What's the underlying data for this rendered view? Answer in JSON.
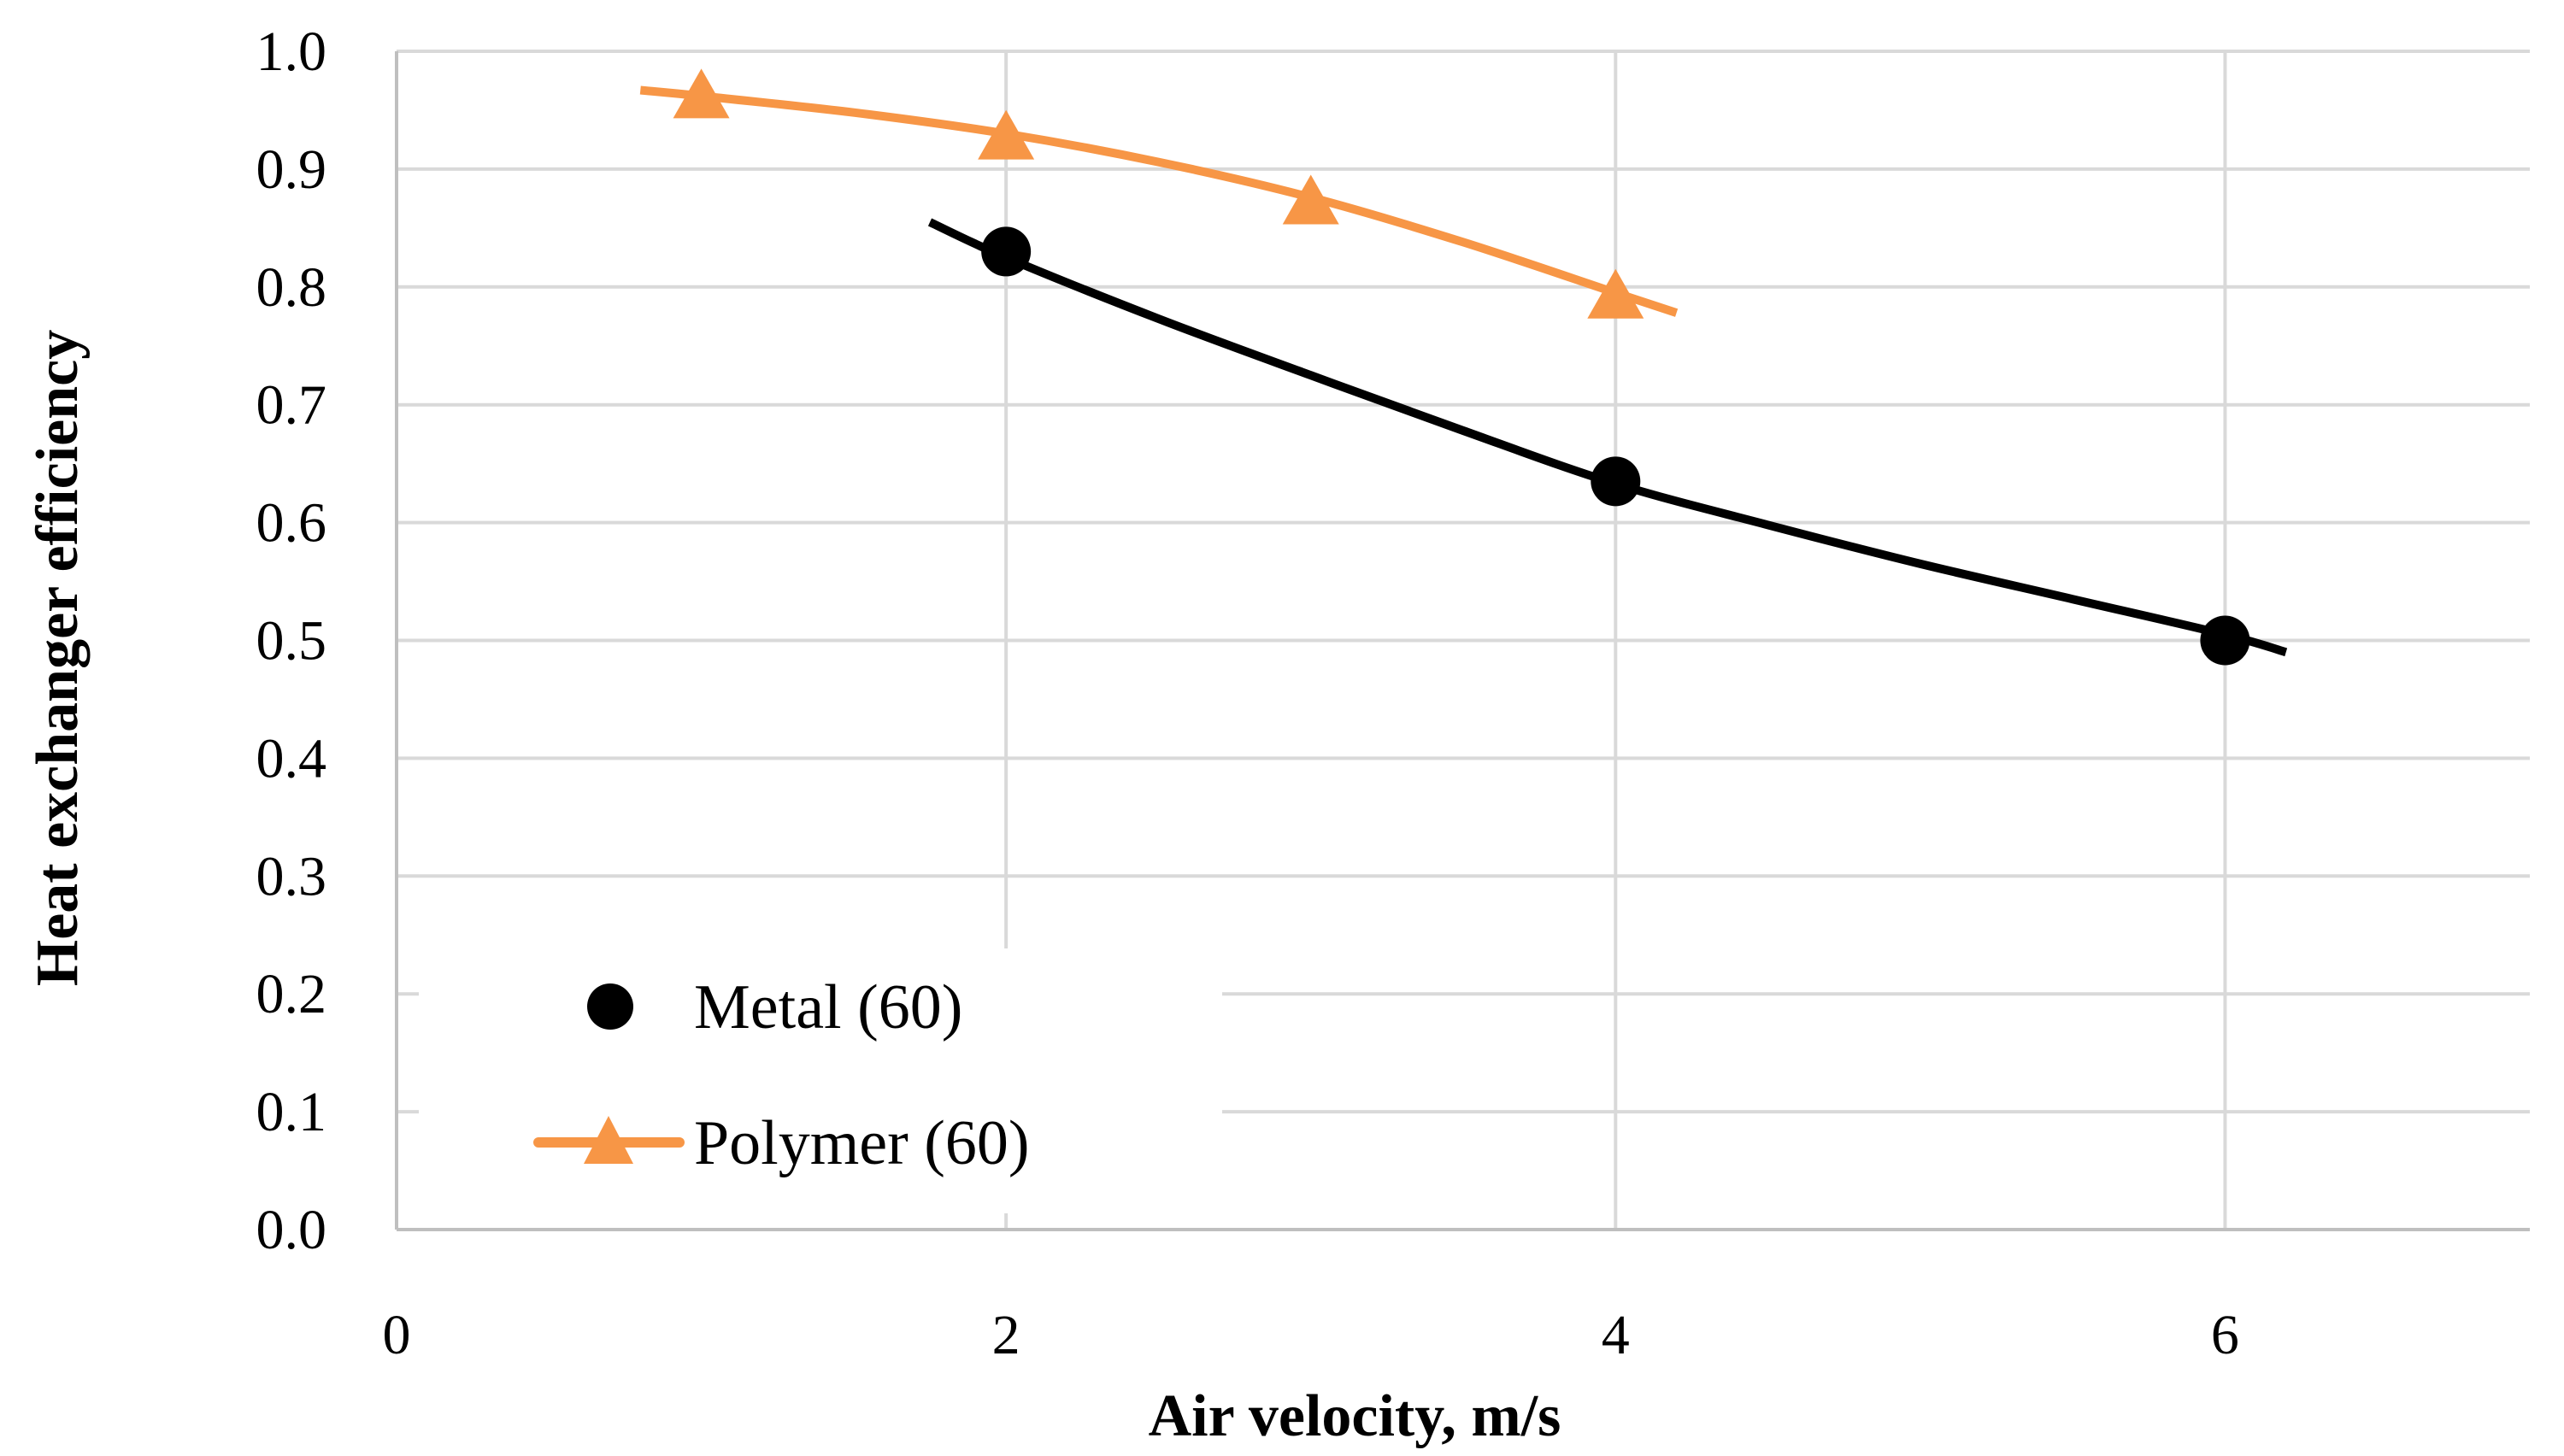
{
  "chart_data": {
    "type": "scatter",
    "title": "",
    "xlabel": "Air velocity, m/s",
    "ylabel": "Heat exchanger efficiency",
    "xlim": [
      0,
      7
    ],
    "ylim": [
      0,
      1.0
    ],
    "x_ticks": [
      0,
      2,
      4,
      6
    ],
    "x_tick_labels": [
      "0",
      "2",
      "4",
      "6"
    ],
    "y_ticks": [
      0,
      0.1,
      0.2,
      0.3,
      0.4,
      0.5,
      0.6,
      0.7,
      0.8,
      0.9,
      1.0
    ],
    "y_tick_labels": [
      "0.0",
      "0.1",
      "0.2",
      "0.3",
      "0.4",
      "0.5",
      "0.6",
      "0.7",
      "0.8",
      "0.9",
      "1.0"
    ],
    "grid": {
      "vertical": true,
      "horizontal": true
    },
    "legend_position": "bottom-left",
    "series": [
      {
        "name": "Metal (60)",
        "marker": "circle",
        "color": "#000000",
        "x": [
          2,
          4,
          6
        ],
        "y": [
          0.83,
          0.635,
          0.5
        ],
        "trendline": {
          "x": [
            1.75,
            2,
            2.5,
            3,
            3.5,
            4,
            4.5,
            5,
            5.5,
            6,
            6.2
          ],
          "y": [
            0.855,
            0.825,
            0.773,
            0.725,
            0.678,
            0.633,
            0.598,
            0.565,
            0.535,
            0.505,
            0.49
          ]
        }
      },
      {
        "name": "Polymer (60)",
        "marker": "triangle",
        "color": "#f79646",
        "x": [
          1,
          2,
          3,
          4
        ],
        "y": [
          0.96,
          0.925,
          0.87,
          0.79
        ],
        "trendline": {
          "x": [
            0.8,
            1,
            1.5,
            2,
            2.5,
            3,
            3.5,
            4,
            4.2
          ],
          "y": [
            0.967,
            0.962,
            0.948,
            0.93,
            0.906,
            0.876,
            0.838,
            0.795,
            0.778
          ]
        }
      }
    ]
  }
}
